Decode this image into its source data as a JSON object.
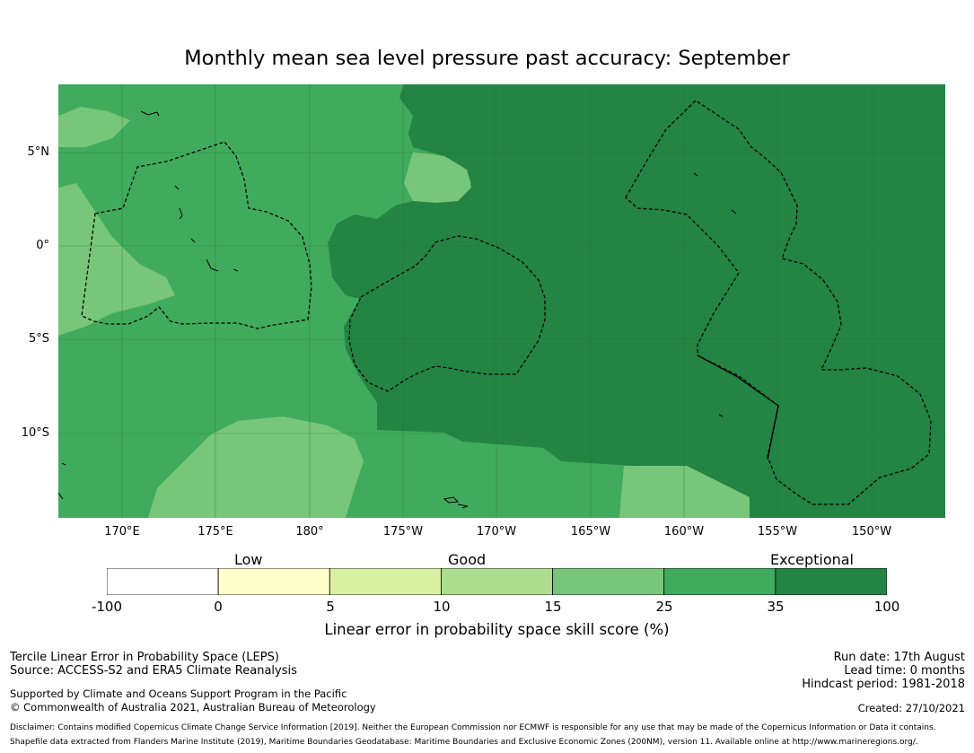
{
  "title": "Monthly mean sea level pressure past accuracy: September",
  "map": {
    "lat_labels": [
      "5°N",
      "0°",
      "5°S",
      "10°S"
    ],
    "lon_labels": [
      "170°E",
      "175°E",
      "180°",
      "175°W",
      "170°W",
      "165°W",
      "160°W",
      "155°W",
      "150°W"
    ],
    "lon_range": [
      "166.6°E",
      "147.6°W"
    ],
    "lat_range": [
      "8.8°N",
      "14.4°S"
    ],
    "colors": {
      "ocean_exceptional": "#238443",
      "ocean_good_high": "#41ab5d",
      "ocean_good": "#78c679",
      "boundary": "#000000",
      "gridline": "#1e6a35"
    }
  },
  "colorbar": {
    "categories": [
      "Low",
      "Good",
      "Exceptional"
    ],
    "ticks": [
      "-100",
      "0",
      "5",
      "10",
      "15",
      "25",
      "35",
      "100"
    ],
    "colors": [
      "#ffffff",
      "#ffffcc",
      "#d9f0a3",
      "#addd8e",
      "#78c679",
      "#41ab5d",
      "#238443"
    ],
    "label": "Linear error in probability space skill score (%)"
  },
  "footer": {
    "method": "Tercile Linear Error in Probability Space (LEPS)",
    "source": "Source: ACCESS-S2 and ERA5 Climate Reanalysis",
    "support": "Supported by Climate and Oceans Support Program in the Pacific",
    "copyright": "© Commonwealth of Australia 2021, Australian Bureau of Meteorology",
    "run_date": "Run date: 17th August",
    "lead_time": "Lead time: 0 months",
    "hindcast": "Hindcast period: 1981-2018",
    "created": "Created: 27/10/2021",
    "disclaimer": "Disclaimer: Contains modified Copernicus Climate Change Service Information [2019]. Neither the European Commission nor ECMWF is responsible for any use that may be made of the Copernicus Information or Data it contains.",
    "shapefile": "Shapefile data extracted from Flanders Marine Institute (2019), Maritime Boundaries Geodatabase: Maritime Boundaries and Exclusive Economic Zones (200NM), version 11. Available online at http://www.marineregions.org/."
  }
}
